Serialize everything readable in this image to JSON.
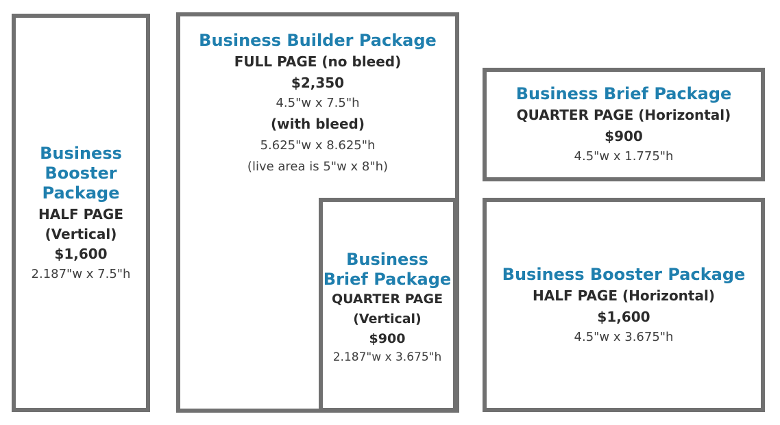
{
  "ads": {
    "half_vertical": {
      "package_line1": "Business",
      "package_line2": "Booster",
      "package_line3": "Package",
      "size_line1": "HALF PAGE",
      "size_line2": "(Vertical)",
      "price": "$1,600",
      "dimensions": "2.187\"w x 7.5\"h"
    },
    "full_page": {
      "package": "Business Builder Package",
      "size": "FULL PAGE (no bleed)",
      "price": "$2,350",
      "dimensions": "4.5\"w x 7.5\"h",
      "bleed_label": "(with bleed)",
      "bleed_dimensions": "5.625\"w x 8.625\"h",
      "live_area": "(live area is 5\"w x 8\"h)"
    },
    "quarter_vertical": {
      "package_line1": "Business",
      "package_line2": "Brief Package",
      "size_line1": "QUARTER PAGE",
      "size_line2": "(Vertical)",
      "price": "$900",
      "dimensions": "2.187\"w x 3.675\"h"
    },
    "quarter_horizontal": {
      "package": "Business Brief Package",
      "size": "QUARTER PAGE (Horizontal)",
      "price": "$900",
      "dimensions": "4.5\"w x 1.775\"h"
    },
    "half_horizontal": {
      "package": "Business Booster Package",
      "size": "HALF PAGE (Horizontal)",
      "price": "$1,600",
      "dimensions": "4.5\"w x 3.675\"h"
    }
  },
  "colors": {
    "package_title": "#1f7fae",
    "border": "#707070",
    "text": "#2b2b2b"
  }
}
